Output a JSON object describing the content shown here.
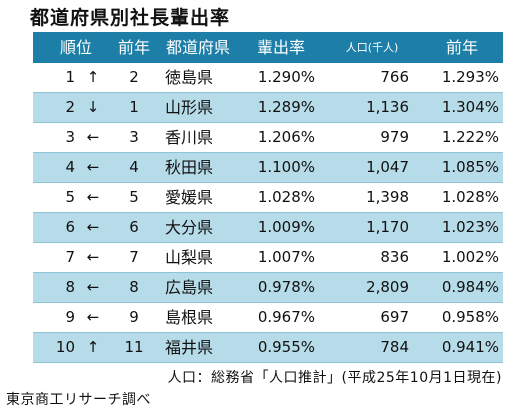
{
  "title": "都道府県別社長輩出率",
  "header": {
    "rank": "順位",
    "prev_rank": "前年",
    "prefecture": "都道府県",
    "rate": "輩出率",
    "population": "人口(千人)",
    "prev_rate": "前年"
  },
  "rows": [
    {
      "rank": "1",
      "arrow": "↑",
      "prev_rank": "2",
      "prefecture": "徳島県",
      "rate": "1.290%",
      "population": "766",
      "prev_rate": "1.293%"
    },
    {
      "rank": "2",
      "arrow": "↓",
      "prev_rank": "1",
      "prefecture": "山形県",
      "rate": "1.289%",
      "population": "1,136",
      "prev_rate": "1.304%"
    },
    {
      "rank": "3",
      "arrow": "←",
      "prev_rank": "3",
      "prefecture": "香川県",
      "rate": "1.206%",
      "population": "979",
      "prev_rate": "1.222%"
    },
    {
      "rank": "4",
      "arrow": "←",
      "prev_rank": "4",
      "prefecture": "秋田県",
      "rate": "1.100%",
      "population": "1,047",
      "prev_rate": "1.085%"
    },
    {
      "rank": "5",
      "arrow": "←",
      "prev_rank": "5",
      "prefecture": "愛媛県",
      "rate": "1.028%",
      "population": "1,398",
      "prev_rate": "1.028%"
    },
    {
      "rank": "6",
      "arrow": "←",
      "prev_rank": "6",
      "prefecture": "大分県",
      "rate": "1.009%",
      "population": "1,170",
      "prev_rate": "1.023%"
    },
    {
      "rank": "7",
      "arrow": "←",
      "prev_rank": "7",
      "prefecture": "山梨県",
      "rate": "1.007%",
      "population": "836",
      "prev_rate": "1.002%"
    },
    {
      "rank": "8",
      "arrow": "←",
      "prev_rank": "8",
      "prefecture": "広島県",
      "rate": "0.978%",
      "population": "2,809",
      "prev_rate": "0.984%"
    },
    {
      "rank": "9",
      "arrow": "←",
      "prev_rank": "9",
      "prefecture": "島根県",
      "rate": "0.967%",
      "population": "697",
      "prev_rate": "0.958%"
    },
    {
      "rank": "10",
      "arrow": "↑",
      "prev_rank": "11",
      "prefecture": "福井県",
      "rate": "0.955%",
      "population": "784",
      "prev_rate": "0.941%"
    }
  ],
  "source": "人口：総務省「人口推計」(平成25年10月1日現在)",
  "credit": "東京商工リサーチ調べ",
  "colors": {
    "header_bg": "#1d7fa8",
    "stripe": "#b7dce9"
  }
}
